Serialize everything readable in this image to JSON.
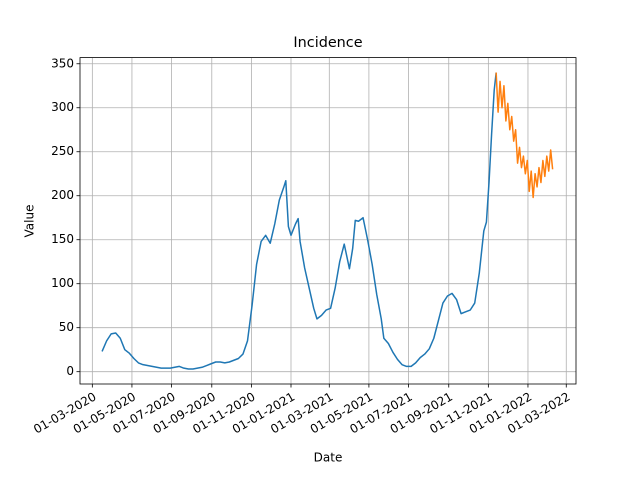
{
  "chart_data": {
    "type": "line",
    "title": "Incidence",
    "x_label": "Date",
    "y_label": "Value",
    "xlim": [
      "2020-02-11",
      "2022-03-16"
    ],
    "xticks": [
      {
        "value": "2020-03-01",
        "label": "01-03-2020"
      },
      {
        "value": "2020-05-01",
        "label": "01-05-2020"
      },
      {
        "value": "2020-07-01",
        "label": "01-07-2020"
      },
      {
        "value": "2020-09-01",
        "label": "01-09-2020"
      },
      {
        "value": "2020-11-01",
        "label": "01-11-2020"
      },
      {
        "value": "2021-01-01",
        "label": "01-01-2021"
      },
      {
        "value": "2021-03-01",
        "label": "01-03-2021"
      },
      {
        "value": "2021-05-01",
        "label": "01-05-2021"
      },
      {
        "value": "2021-07-01",
        "label": "01-07-2021"
      },
      {
        "value": "2021-09-01",
        "label": "01-09-2021"
      },
      {
        "value": "2021-11-01",
        "label": "01-11-2021"
      },
      {
        "value": "2022-01-01",
        "label": "01-01-2022"
      },
      {
        "value": "2022-03-01",
        "label": "01-03-2022"
      }
    ],
    "ylim": [
      -14,
      357
    ],
    "yticks": [
      0,
      50,
      100,
      150,
      200,
      250,
      300,
      350
    ],
    "grid": true,
    "series": [
      {
        "color": "#1f77b4",
        "x": [
          "2020-03-16",
          "2020-03-23",
          "2020-03-30",
          "2020-04-06",
          "2020-04-13",
          "2020-04-20",
          "2020-04-27",
          "2020-05-04",
          "2020-05-11",
          "2020-05-18",
          "2020-05-25",
          "2020-06-01",
          "2020-06-08",
          "2020-06-15",
          "2020-06-22",
          "2020-06-29",
          "2020-07-06",
          "2020-07-13",
          "2020-07-20",
          "2020-07-27",
          "2020-08-03",
          "2020-08-10",
          "2020-08-17",
          "2020-08-24",
          "2020-08-31",
          "2020-09-07",
          "2020-09-14",
          "2020-09-21",
          "2020-09-28",
          "2020-10-05",
          "2020-10-12",
          "2020-10-19",
          "2020-10-26",
          "2020-11-02",
          "2020-11-09",
          "2020-11-16",
          "2020-11-23",
          "2020-11-30",
          "2020-12-07",
          "2020-12-14",
          "2020-12-21",
          "2020-12-24",
          "2020-12-28",
          "2021-01-01",
          "2021-01-08",
          "2021-01-12",
          "2021-01-15",
          "2021-01-22",
          "2021-01-29",
          "2021-02-05",
          "2021-02-10",
          "2021-02-17",
          "2021-02-24",
          "2021-03-03",
          "2021-03-10",
          "2021-03-17",
          "2021-03-24",
          "2021-04-01",
          "2021-04-06",
          "2021-04-10",
          "2021-04-15",
          "2021-04-22",
          "2021-04-29",
          "2021-05-06",
          "2021-05-13",
          "2021-05-20",
          "2021-05-24",
          "2021-05-31",
          "2021-06-07",
          "2021-06-14",
          "2021-06-21",
          "2021-06-28",
          "2021-07-05",
          "2021-07-12",
          "2021-07-19",
          "2021-07-26",
          "2021-08-02",
          "2021-08-09",
          "2021-08-16",
          "2021-08-23",
          "2021-08-30",
          "2021-09-06",
          "2021-09-13",
          "2021-09-20",
          "2021-09-27",
          "2021-10-04",
          "2021-10-11",
          "2021-10-18",
          "2021-10-25",
          "2021-10-29",
          "2021-11-02",
          "2021-11-06",
          "2021-11-10",
          "2021-11-13"
        ],
        "values": [
          23,
          35,
          43,
          44,
          38,
          25,
          21,
          15,
          10,
          8,
          7,
          6,
          5,
          4,
          4,
          4,
          5,
          6,
          4,
          3,
          3,
          4,
          5,
          7,
          9,
          11,
          11,
          10,
          11,
          13,
          15,
          20,
          35,
          75,
          122,
          148,
          155,
          146,
          168,
          195,
          210,
          217,
          165,
          155,
          168,
          174,
          148,
          118,
          95,
          72,
          60,
          64,
          70,
          72,
          95,
          125,
          145,
          117,
          140,
          172,
          171,
          175,
          150,
          122,
          88,
          60,
          38,
          32,
          22,
          14,
          8,
          6,
          6,
          10,
          16,
          20,
          26,
          38,
          58,
          78,
          86,
          89,
          82,
          66,
          68,
          70,
          78,
          112,
          160,
          170,
          215,
          270,
          320,
          340
        ]
      },
      {
        "color": "#ff7f0e",
        "x": [
          "2021-11-13",
          "2021-11-16",
          "2021-11-19",
          "2021-11-22",
          "2021-11-25",
          "2021-11-28",
          "2021-12-01",
          "2021-12-04",
          "2021-12-07",
          "2021-12-10",
          "2021-12-13",
          "2021-12-16",
          "2021-12-19",
          "2021-12-22",
          "2021-12-25",
          "2021-12-28",
          "2021-12-31",
          "2022-01-03",
          "2022-01-06",
          "2022-01-09",
          "2022-01-12",
          "2022-01-15",
          "2022-01-18",
          "2022-01-21",
          "2022-01-24",
          "2022-01-27",
          "2022-01-30",
          "2022-02-02",
          "2022-02-05",
          "2022-02-08"
        ],
        "values": [
          340,
          295,
          330,
          300,
          325,
          285,
          305,
          275,
          290,
          262,
          275,
          237,
          255,
          232,
          245,
          225,
          240,
          205,
          228,
          198,
          225,
          210,
          232,
          215,
          240,
          222,
          245,
          228,
          252,
          230
        ]
      }
    ]
  }
}
